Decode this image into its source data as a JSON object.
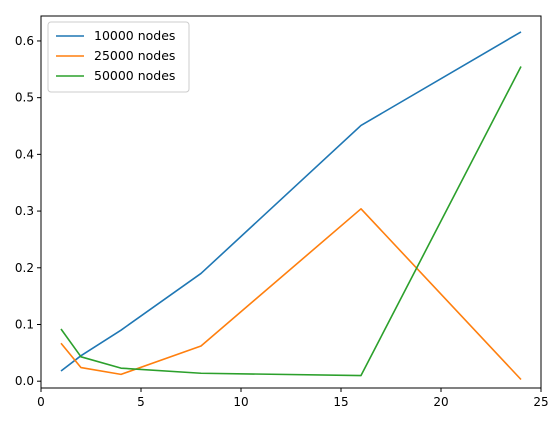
{
  "chart_data": {
    "type": "line",
    "title": "",
    "xlabel": "",
    "ylabel": "",
    "x": [
      1,
      2,
      4,
      8,
      16,
      24
    ],
    "series": [
      {
        "name": "10000 nodes",
        "color": "#1f77b4",
        "values": [
          0.018,
          0.045,
          0.09,
          0.19,
          0.451,
          0.616
        ]
      },
      {
        "name": "25000 nodes",
        "color": "#ff7f0e",
        "values": [
          0.067,
          0.024,
          0.012,
          0.062,
          0.304,
          0.003
        ]
      },
      {
        "name": "50000 nodes",
        "color": "#2ca02c",
        "values": [
          0.092,
          0.043,
          0.023,
          0.014,
          0.01,
          0.555
        ]
      }
    ],
    "xlim": [
      0,
      25
    ],
    "ylim": [
      -0.012,
      0.644
    ],
    "xticks": [
      0,
      5,
      10,
      15,
      20,
      25
    ],
    "yticks": [
      0.0,
      0.1,
      0.2,
      0.3,
      0.4,
      0.5,
      0.6
    ],
    "ytick_labels": [
      "0.0",
      "0.1",
      "0.2",
      "0.3",
      "0.4",
      "0.5",
      "0.6"
    ],
    "xtick_labels": [
      "0",
      "5",
      "10",
      "15",
      "20",
      "25"
    ],
    "grid": false,
    "legend_position": "top-left"
  }
}
